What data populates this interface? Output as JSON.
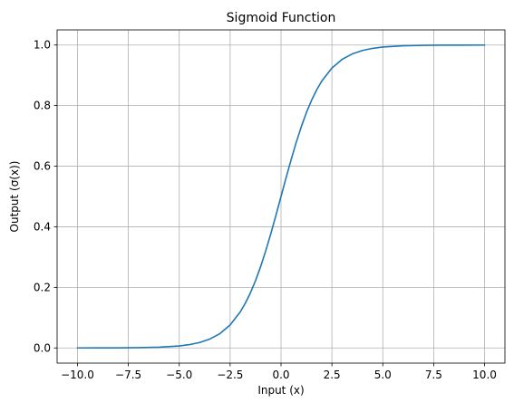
{
  "chart_data": {
    "type": "line",
    "title": "Sigmoid Function",
    "xlabel": "Input (x)",
    "ylabel": "Output (σ(x))",
    "xlim": [
      -11.0,
      11.0
    ],
    "ylim": [
      -0.05,
      1.05
    ],
    "x_ticks": [
      -10.0,
      -7.5,
      -5.0,
      -2.5,
      0.0,
      2.5,
      5.0,
      7.5,
      10.0
    ],
    "x_tick_labels": [
      "−10.0",
      "−7.5",
      "−5.0",
      "−2.5",
      "0.0",
      "2.5",
      "5.0",
      "7.5",
      "10.0"
    ],
    "y_ticks": [
      0.0,
      0.2,
      0.4,
      0.6,
      0.8,
      1.0
    ],
    "y_tick_labels": [
      "0.0",
      "0.2",
      "0.4",
      "0.6",
      "0.8",
      "1.0"
    ],
    "grid": true,
    "series": [
      {
        "color": "#1f77b4",
        "x": [
          -10,
          -9,
          -8,
          -7,
          -6,
          -5,
          -4.5,
          -4,
          -3.5,
          -3,
          -2.5,
          -2,
          -1.75,
          -1.5,
          -1.25,
          -1,
          -0.75,
          -0.5,
          -0.25,
          0,
          0.25,
          0.5,
          0.75,
          1,
          1.25,
          1.5,
          1.75,
          2,
          2.5,
          3,
          3.5,
          4,
          4.5,
          5,
          6,
          7,
          8,
          9,
          10
        ],
        "y": [
          4.54e-05,
          0.0001234,
          0.0003354,
          0.000911,
          0.002473,
          0.006693,
          0.010987,
          0.017986,
          0.029312,
          0.047426,
          0.075858,
          0.119203,
          0.148047,
          0.182426,
          0.2227,
          0.268941,
          0.320821,
          0.377541,
          0.437823,
          0.5,
          0.562177,
          0.622459,
          0.679179,
          0.731059,
          0.7773,
          0.817574,
          0.851953,
          0.880797,
          0.924142,
          0.952574,
          0.970688,
          0.982014,
          0.989013,
          0.993307,
          0.997527,
          0.999089,
          0.999665,
          0.999877,
          0.999955
        ]
      }
    ]
  }
}
